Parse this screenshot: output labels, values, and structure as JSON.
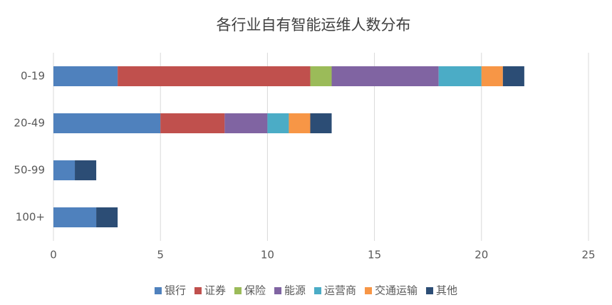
{
  "chart_data": {
    "type": "bar",
    "orientation": "horizontal",
    "stacked": true,
    "title": "各行业自有智能运维人数分布",
    "categories": [
      "0-19",
      "20-49",
      "50-99",
      "100+"
    ],
    "series": [
      {
        "name": "银行",
        "color": "#4f81bd",
        "values": [
          3,
          5,
          1,
          2
        ]
      },
      {
        "name": "证券",
        "color": "#c0504d",
        "values": [
          9,
          3,
          0,
          0
        ]
      },
      {
        "name": "保险",
        "color": "#9bbb59",
        "values": [
          1,
          0,
          0,
          0
        ]
      },
      {
        "name": "能源",
        "color": "#8064a2",
        "values": [
          5,
          2,
          0,
          0
        ]
      },
      {
        "name": "运营商",
        "color": "#4bacc6",
        "values": [
          2,
          1,
          0,
          0
        ]
      },
      {
        "name": "交通运输",
        "color": "#f79646",
        "values": [
          1,
          1,
          0,
          0
        ]
      },
      {
        "name": "其他",
        "color": "#2c4d75",
        "values": [
          1,
          1,
          1,
          1
        ]
      }
    ],
    "xlim": [
      0,
      25
    ],
    "xticks": [
      0,
      5,
      10,
      15,
      20,
      25
    ],
    "grid": true,
    "legend": "bottom"
  }
}
